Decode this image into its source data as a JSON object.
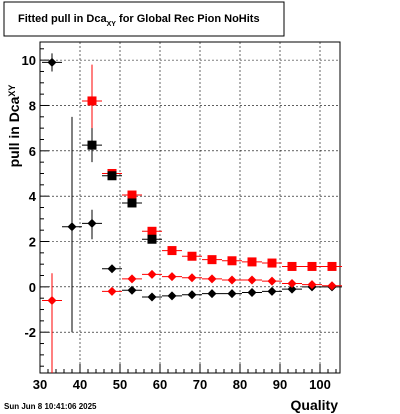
{
  "chart_data": {
    "type": "scatter",
    "title_main": "Fitted pull in Dca",
    "title_sub": "XY",
    "title_rest": " for Global Rec Pion NoHits",
    "xlabel": "Quality",
    "ylabel_main": "pull in Dca",
    "ylabel_sub": "XY",
    "xlim": [
      30,
      105
    ],
    "ylim": [
      -3.8,
      10.8
    ],
    "x_ticks": [
      30,
      40,
      50,
      60,
      70,
      80,
      90,
      100
    ],
    "y_ticks": [
      -2,
      0,
      2,
      4,
      6,
      8,
      10
    ],
    "grid": true,
    "footer_date": "Sun Jun  8 10:41:06 2025",
    "series": [
      {
        "marker": "square",
        "color": "#ff0000",
        "points": [
          {
            "x": 43,
            "y": 8.2,
            "ylo": 6.0,
            "yhi": 9.8
          },
          {
            "x": 48,
            "y": 5.0
          },
          {
            "x": 53,
            "y": 4.05
          },
          {
            "x": 58,
            "y": 2.45
          },
          {
            "x": 63,
            "y": 1.6
          },
          {
            "x": 68,
            "y": 1.35
          },
          {
            "x": 73,
            "y": 1.2
          },
          {
            "x": 78,
            "y": 1.15
          },
          {
            "x": 83,
            "y": 1.1
          },
          {
            "x": 88,
            "y": 1.05
          },
          {
            "x": 93,
            "y": 0.9
          },
          {
            "x": 98,
            "y": 0.9
          },
          {
            "x": 103,
            "y": 0.9
          }
        ]
      },
      {
        "marker": "square",
        "color": "#000000",
        "points": [
          {
            "x": 43,
            "y": 6.25,
            "ylo": 5.5,
            "yhi": 7.0
          },
          {
            "x": 48,
            "y": 4.9
          },
          {
            "x": 53,
            "y": 3.7
          },
          {
            "x": 58,
            "y": 2.1
          }
        ]
      },
      {
        "marker": "diamond",
        "color": "#000000",
        "points": [
          {
            "x": 33,
            "y": 9.9,
            "ylo": 9.5,
            "yhi": 10.3
          },
          {
            "x": 38,
            "y": 2.65,
            "ylo": -2.0,
            "yhi": 7.5
          },
          {
            "x": 43,
            "y": 2.8,
            "ylo": 2.1,
            "yhi": 3.4
          },
          {
            "x": 48,
            "y": 0.8
          },
          {
            "x": 53,
            "y": -0.15
          },
          {
            "x": 58,
            "y": -0.45
          },
          {
            "x": 63,
            "y": -0.4
          },
          {
            "x": 68,
            "y": -0.35
          },
          {
            "x": 73,
            "y": -0.3
          },
          {
            "x": 78,
            "y": -0.3
          },
          {
            "x": 83,
            "y": -0.25
          },
          {
            "x": 88,
            "y": -0.2
          },
          {
            "x": 93,
            "y": -0.1
          },
          {
            "x": 98,
            "y": 0.0
          },
          {
            "x": 103,
            "y": 0.0
          }
        ]
      },
      {
        "marker": "diamond",
        "color": "#ff0000",
        "points": [
          {
            "x": 33,
            "y": -0.6,
            "ylo": -3.8,
            "yhi": 0.6
          },
          {
            "x": 48,
            "y": -0.2
          },
          {
            "x": 53,
            "y": 0.35
          },
          {
            "x": 58,
            "y": 0.55
          },
          {
            "x": 63,
            "y": 0.45
          },
          {
            "x": 68,
            "y": 0.4
          },
          {
            "x": 73,
            "y": 0.35
          },
          {
            "x": 78,
            "y": 0.3
          },
          {
            "x": 83,
            "y": 0.3
          },
          {
            "x": 88,
            "y": 0.25
          },
          {
            "x": 93,
            "y": 0.15
          },
          {
            "x": 98,
            "y": 0.1
          },
          {
            "x": 103,
            "y": 0.05
          }
        ]
      }
    ]
  }
}
